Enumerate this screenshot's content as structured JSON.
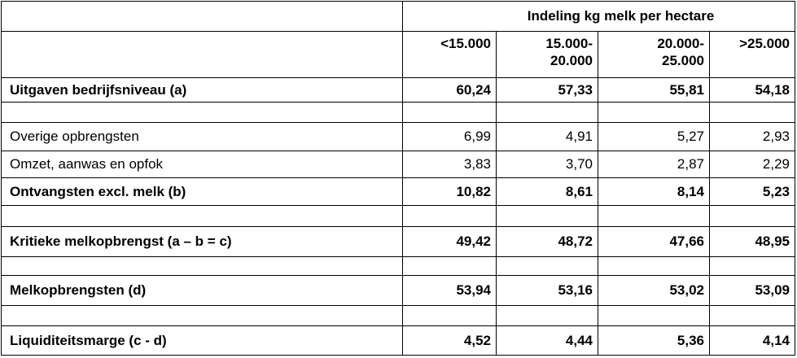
{
  "header": {
    "title": "Indeling kg melk per hectare",
    "columns": [
      [
        "<15.000"
      ],
      [
        "15.000-",
        "20.000"
      ],
      [
        "20.000-",
        "25.000"
      ],
      [
        ">25.000"
      ]
    ]
  },
  "table": {
    "rows": [
      {
        "label": "Uitgaven bedrijfsniveau (a)",
        "values": [
          "60,24",
          "57,33",
          "55,81",
          "54,18"
        ]
      },
      {
        "label": "Overige opbrengsten",
        "values": [
          "6,99",
          "4,91",
          "5,27",
          "2,93"
        ]
      },
      {
        "label": "Omzet, aanwas en opfok",
        "values": [
          "3,83",
          "3,70",
          "2,87",
          "2,29"
        ]
      },
      {
        "label": "Ontvangsten excl. melk (b)",
        "values": [
          "10,82",
          "8,61",
          "8,14",
          "5,23"
        ]
      },
      {
        "label": "Kritieke melkopbrengst (a – b = c)",
        "values": [
          "49,42",
          "48,72",
          "47,66",
          "48,95"
        ]
      },
      {
        "label": "Melkopbrengsten (d)",
        "values": [
          "53,94",
          "53,16",
          "53,02",
          "53,09"
        ]
      },
      {
        "label": "Liquiditeitsmarge (c - d)",
        "values": [
          "4,52",
          "4,44",
          "5,36",
          "4,14"
        ]
      }
    ]
  }
}
